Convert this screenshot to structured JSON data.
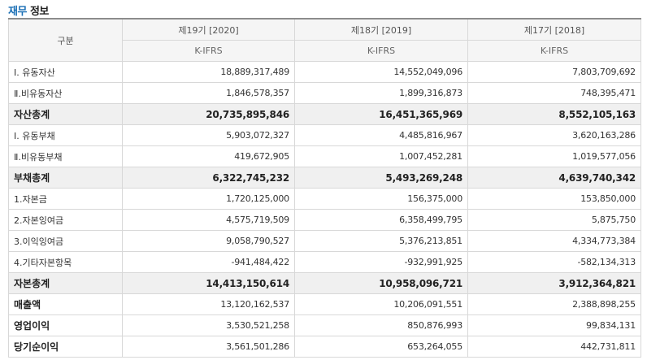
{
  "page_title": {
    "accent": "재무",
    "rest": " 정보"
  },
  "table": {
    "row_header": "구분",
    "columns": [
      {
        "period": "제19기 [2020]",
        "standard": "K-IFRS"
      },
      {
        "period": "제18기 [2019]",
        "standard": "K-IFRS"
      },
      {
        "period": "제17기 [2018]",
        "standard": "K-IFRS"
      }
    ],
    "rows": [
      {
        "label": "Ⅰ. 유동자산",
        "style": "normal",
        "values": [
          "18,889,317,489",
          "14,552,049,096",
          "7,803,709,692"
        ]
      },
      {
        "label": "Ⅱ.비유동자산",
        "style": "normal",
        "values": [
          "1,846,578,357",
          "1,899,316,873",
          "748,395,471"
        ]
      },
      {
        "label": "자산총계",
        "style": "total",
        "values": [
          "20,735,895,846",
          "16,451,365,969",
          "8,552,105,163"
        ]
      },
      {
        "label": "Ⅰ. 유동부채",
        "style": "normal",
        "values": [
          "5,903,072,327",
          "4,485,816,967",
          "3,620,163,286"
        ]
      },
      {
        "label": "Ⅱ.비유동부채",
        "style": "normal",
        "values": [
          "419,672,905",
          "1,007,452,281",
          "1,019,577,056"
        ]
      },
      {
        "label": "부채총계",
        "style": "total",
        "values": [
          "6,322,745,232",
          "5,493,269,248",
          "4,639,740,342"
        ]
      },
      {
        "label": "1.자본금",
        "style": "normal",
        "values": [
          "1,720,125,000",
          "156,375,000",
          "153,850,000"
        ]
      },
      {
        "label": "2.자본잉여금",
        "style": "normal",
        "values": [
          "4,575,719,509",
          "6,358,499,795",
          "5,875,750"
        ]
      },
      {
        "label": "3.이익잉여금",
        "style": "normal",
        "values": [
          "9,058,790,527",
          "5,376,213,851",
          "4,334,773,384"
        ]
      },
      {
        "label": "4.기타자본항목",
        "style": "normal",
        "values": [
          "-941,484,422",
          "-932,991,925",
          "-582,134,313"
        ]
      },
      {
        "label": "자본총계",
        "style": "total",
        "values": [
          "14,413,150,614",
          "10,958,096,721",
          "3,912,364,821"
        ]
      },
      {
        "label": "매출액",
        "style": "strong",
        "values": [
          "13,120,162,537",
          "10,206,091,551",
          "2,388,898,255"
        ]
      },
      {
        "label": "영업이익",
        "style": "strong",
        "values": [
          "3,530,521,258",
          "850,876,993",
          "99,834,131"
        ]
      },
      {
        "label": "당기순이익",
        "style": "strong",
        "values": [
          "3,561,501,286",
          "653,264,055",
          "442,731,811"
        ]
      }
    ]
  }
}
